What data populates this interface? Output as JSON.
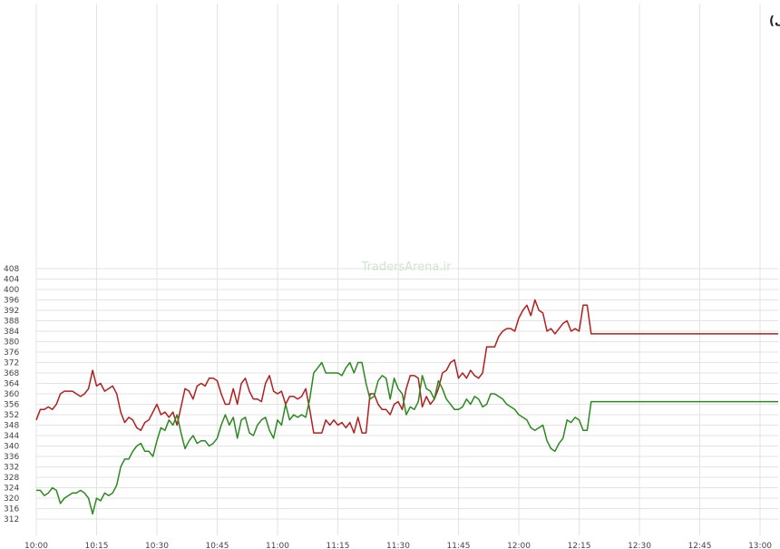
{
  "chart_data": {
    "type": "line",
    "title": "نمادهای مثبت و منفی (سهام حق تقدم و صندوق های سهامی)",
    "watermark": "TradersArena.ir",
    "ylim": [
      310,
      410
    ],
    "y_ticks": [
      312,
      316,
      320,
      324,
      328,
      332,
      336,
      340,
      344,
      348,
      352,
      356,
      360,
      364,
      368,
      372,
      376,
      380,
      384,
      388,
      392,
      396,
      400,
      404,
      408
    ],
    "x_ticks": [
      {
        "t": 600,
        "label": "10:00"
      },
      {
        "t": 615,
        "label": "10:15"
      },
      {
        "t": 630,
        "label": "10:30"
      },
      {
        "t": 645,
        "label": "10:45"
      },
      {
        "t": 660,
        "label": "11:00"
      },
      {
        "t": 675,
        "label": "11:15"
      },
      {
        "t": 690,
        "label": "11:30"
      },
      {
        "t": 705,
        "label": "11:45"
      },
      {
        "t": 720,
        "label": "12:00"
      },
      {
        "t": 735,
        "label": "12:15"
      },
      {
        "t": 750,
        "label": "12:30"
      },
      {
        "t": 765,
        "label": "12:45"
      },
      {
        "t": 780,
        "label": "13:00"
      }
    ],
    "xlim": [
      600,
      784.5
    ],
    "grid": true,
    "series": [
      {
        "color": "#b41e1e",
        "points": [
          [
            600,
            350
          ],
          [
            601,
            354
          ],
          [
            602,
            354
          ],
          [
            603,
            355
          ],
          [
            604,
            354
          ],
          [
            605,
            356
          ],
          [
            606,
            360
          ],
          [
            607,
            361
          ],
          [
            608,
            361
          ],
          [
            609,
            361
          ],
          [
            610,
            360
          ],
          [
            611,
            359
          ],
          [
            612,
            360
          ],
          [
            613,
            362
          ],
          [
            614,
            369
          ],
          [
            615,
            363
          ],
          [
            616,
            364
          ],
          [
            617,
            361
          ],
          [
            618,
            362
          ],
          [
            619,
            363
          ],
          [
            620,
            360
          ],
          [
            621,
            353
          ],
          [
            622,
            349
          ],
          [
            623,
            351
          ],
          [
            624,
            350
          ],
          [
            625,
            347
          ],
          [
            626,
            346
          ],
          [
            627,
            349
          ],
          [
            628,
            350
          ],
          [
            629,
            353
          ],
          [
            630,
            356
          ],
          [
            631,
            352
          ],
          [
            632,
            353
          ],
          [
            633,
            351
          ],
          [
            634,
            353
          ],
          [
            635,
            348
          ],
          [
            636,
            355
          ],
          [
            637,
            362
          ],
          [
            638,
            361
          ],
          [
            639,
            358
          ],
          [
            640,
            363
          ],
          [
            641,
            364
          ],
          [
            642,
            363
          ],
          [
            643,
            366
          ],
          [
            644,
            366
          ],
          [
            645,
            365
          ],
          [
            646,
            360
          ],
          [
            647,
            356
          ],
          [
            648,
            356
          ],
          [
            649,
            362
          ],
          [
            650,
            356
          ],
          [
            651,
            364
          ],
          [
            652,
            366
          ],
          [
            653,
            361
          ],
          [
            654,
            358
          ],
          [
            655,
            358
          ],
          [
            656,
            357
          ],
          [
            657,
            364
          ],
          [
            658,
            367
          ],
          [
            659,
            361
          ],
          [
            660,
            360
          ],
          [
            661,
            361
          ],
          [
            662,
            356
          ],
          [
            663,
            359
          ],
          [
            664,
            359
          ],
          [
            665,
            358
          ],
          [
            666,
            359
          ],
          [
            667,
            362
          ],
          [
            668,
            354
          ],
          [
            669,
            345
          ],
          [
            670,
            345
          ],
          [
            671,
            345
          ],
          [
            672,
            350
          ],
          [
            673,
            348
          ],
          [
            674,
            350
          ],
          [
            675,
            348
          ],
          [
            676,
            349
          ],
          [
            677,
            347
          ],
          [
            678,
            349
          ],
          [
            679,
            345
          ],
          [
            680,
            351
          ],
          [
            681,
            345
          ],
          [
            682,
            345
          ],
          [
            683,
            360
          ],
          [
            684,
            360
          ],
          [
            685,
            356
          ],
          [
            686,
            354
          ],
          [
            687,
            354
          ],
          [
            688,
            352
          ],
          [
            689,
            356
          ],
          [
            690,
            357
          ],
          [
            691,
            354
          ],
          [
            692,
            362
          ],
          [
            693,
            367
          ],
          [
            694,
            367
          ],
          [
            695,
            366
          ],
          [
            696,
            355
          ],
          [
            697,
            359
          ],
          [
            698,
            356
          ],
          [
            699,
            358
          ],
          [
            700,
            362
          ],
          [
            701,
            368
          ],
          [
            702,
            369
          ],
          [
            703,
            372
          ],
          [
            704,
            373
          ],
          [
            705,
            366
          ],
          [
            706,
            368
          ],
          [
            707,
            366
          ],
          [
            708,
            369
          ],
          [
            709,
            367
          ],
          [
            710,
            366
          ],
          [
            711,
            368
          ],
          [
            712,
            378
          ],
          [
            713,
            378
          ],
          [
            714,
            378
          ],
          [
            715,
            382
          ],
          [
            716,
            384
          ],
          [
            717,
            385
          ],
          [
            718,
            385
          ],
          [
            719,
            384
          ],
          [
            720,
            389
          ],
          [
            721,
            392
          ],
          [
            722,
            394
          ],
          [
            723,
            390
          ],
          [
            724,
            396
          ],
          [
            725,
            392
          ],
          [
            726,
            391
          ],
          [
            727,
            384
          ],
          [
            728,
            385
          ],
          [
            729,
            383
          ],
          [
            730,
            385
          ],
          [
            731,
            387
          ],
          [
            732,
            388
          ],
          [
            733,
            384
          ],
          [
            734,
            385
          ],
          [
            735,
            384
          ],
          [
            736,
            394
          ],
          [
            737,
            394
          ],
          [
            738,
            383
          ],
          [
            739,
            383
          ],
          [
            784.5,
            383
          ]
        ]
      },
      {
        "color": "#2a8a1e",
        "points": [
          [
            600,
            323
          ],
          [
            601,
            323
          ],
          [
            602,
            321
          ],
          [
            603,
            322
          ],
          [
            604,
            324
          ],
          [
            605,
            323
          ],
          [
            606,
            318
          ],
          [
            607,
            320
          ],
          [
            608,
            321
          ],
          [
            609,
            322
          ],
          [
            610,
            322
          ],
          [
            611,
            323
          ],
          [
            612,
            322
          ],
          [
            613,
            320
          ],
          [
            614,
            314
          ],
          [
            615,
            320
          ],
          [
            616,
            319
          ],
          [
            617,
            322
          ],
          [
            618,
            321
          ],
          [
            619,
            322
          ],
          [
            620,
            325
          ],
          [
            621,
            332
          ],
          [
            622,
            335
          ],
          [
            623,
            335
          ],
          [
            624,
            338
          ],
          [
            625,
            340
          ],
          [
            626,
            341
          ],
          [
            627,
            338
          ],
          [
            628,
            338
          ],
          [
            629,
            336
          ],
          [
            630,
            342
          ],
          [
            631,
            347
          ],
          [
            632,
            346
          ],
          [
            633,
            350
          ],
          [
            634,
            348
          ],
          [
            635,
            352
          ],
          [
            636,
            345
          ],
          [
            637,
            339
          ],
          [
            638,
            342
          ],
          [
            639,
            344
          ],
          [
            640,
            341
          ],
          [
            641,
            342
          ],
          [
            642,
            342
          ],
          [
            643,
            340
          ],
          [
            644,
            341
          ],
          [
            645,
            343
          ],
          [
            646,
            348
          ],
          [
            647,
            352
          ],
          [
            648,
            348
          ],
          [
            649,
            351
          ],
          [
            650,
            343
          ],
          [
            651,
            350
          ],
          [
            652,
            351
          ],
          [
            653,
            345
          ],
          [
            654,
            344
          ],
          [
            655,
            348
          ],
          [
            656,
            350
          ],
          [
            657,
            351
          ],
          [
            658,
            346
          ],
          [
            659,
            343
          ],
          [
            660,
            350
          ],
          [
            661,
            348
          ],
          [
            662,
            356
          ],
          [
            663,
            350
          ],
          [
            664,
            352
          ],
          [
            665,
            351
          ],
          [
            666,
            352
          ],
          [
            667,
            351
          ],
          [
            668,
            358
          ],
          [
            669,
            368
          ],
          [
            670,
            370
          ],
          [
            671,
            372
          ],
          [
            672,
            368
          ],
          [
            673,
            368
          ],
          [
            674,
            368
          ],
          [
            675,
            368
          ],
          [
            676,
            367
          ],
          [
            677,
            370
          ],
          [
            678,
            372
          ],
          [
            679,
            368
          ],
          [
            680,
            372
          ],
          [
            681,
            372
          ],
          [
            682,
            364
          ],
          [
            683,
            358
          ],
          [
            684,
            359
          ],
          [
            685,
            365
          ],
          [
            686,
            367
          ],
          [
            687,
            366
          ],
          [
            688,
            358
          ],
          [
            689,
            366
          ],
          [
            690,
            362
          ],
          [
            691,
            360
          ],
          [
            692,
            352
          ],
          [
            693,
            355
          ],
          [
            694,
            354
          ],
          [
            695,
            357
          ],
          [
            696,
            367
          ],
          [
            697,
            362
          ],
          [
            698,
            361
          ],
          [
            699,
            358
          ],
          [
            700,
            365
          ],
          [
            701,
            362
          ],
          [
            702,
            358
          ],
          [
            703,
            356
          ],
          [
            704,
            354
          ],
          [
            705,
            354
          ],
          [
            706,
            355
          ],
          [
            707,
            358
          ],
          [
            708,
            356
          ],
          [
            709,
            359
          ],
          [
            710,
            358
          ],
          [
            711,
            355
          ],
          [
            712,
            356
          ],
          [
            713,
            360
          ],
          [
            714,
            360
          ],
          [
            715,
            359
          ],
          [
            716,
            358
          ],
          [
            717,
            356
          ],
          [
            718,
            355
          ],
          [
            719,
            354
          ],
          [
            720,
            352
          ],
          [
            721,
            351
          ],
          [
            722,
            350
          ],
          [
            723,
            347
          ],
          [
            724,
            346
          ],
          [
            725,
            347
          ],
          [
            726,
            348
          ],
          [
            727,
            342
          ],
          [
            728,
            339
          ],
          [
            729,
            338
          ],
          [
            730,
            341
          ],
          [
            731,
            343
          ],
          [
            732,
            350
          ],
          [
            733,
            349
          ],
          [
            734,
            351
          ],
          [
            735,
            350
          ],
          [
            736,
            346
          ],
          [
            737,
            346
          ],
          [
            738,
            357
          ],
          [
            739,
            357
          ],
          [
            784.5,
            357
          ]
        ]
      }
    ]
  }
}
